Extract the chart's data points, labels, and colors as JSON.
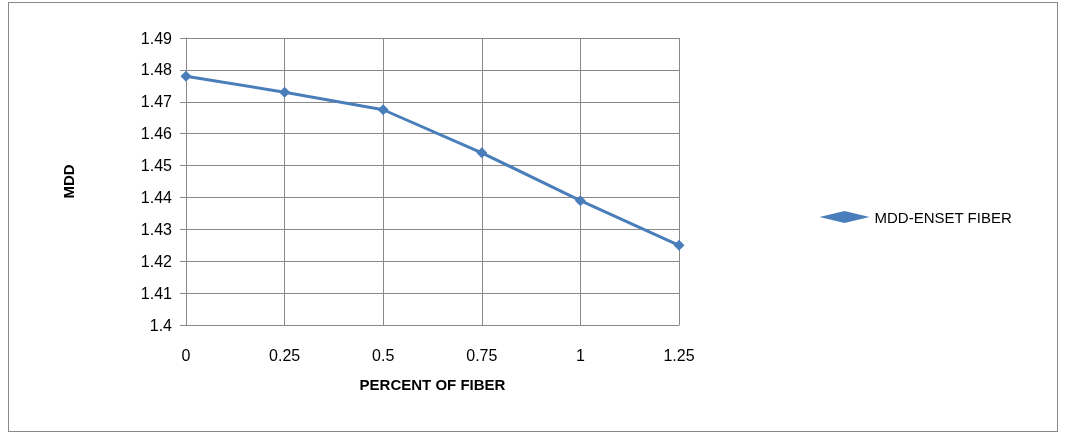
{
  "chart_data": {
    "type": "line",
    "xlabel": "PERCENT OF FIBER",
    "ylabel": "MDD",
    "categories": [
      "0",
      "0.25",
      "0.5",
      "0.75",
      "1",
      "1.25"
    ],
    "series": [
      {
        "name": "MDD-ENSET FIBER",
        "color": "#4a7ebb",
        "values": [
          1.478,
          1.473,
          1.4675,
          1.454,
          1.439,
          1.425
        ]
      }
    ],
    "ylim": [
      1.4,
      1.49
    ],
    "yticks": [
      1.4,
      1.41,
      1.42,
      1.43,
      1.44,
      1.45,
      1.46,
      1.47,
      1.48,
      1.49
    ],
    "grid": true,
    "legend": "right",
    "marker": "diamond",
    "line_style": "solid"
  }
}
